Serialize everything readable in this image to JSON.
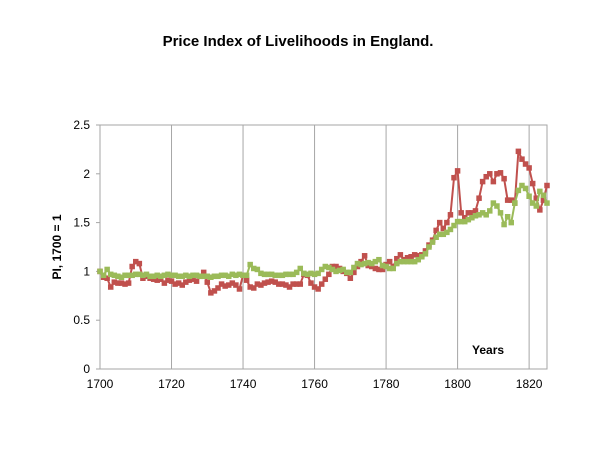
{
  "chart_data": {
    "type": "line",
    "title": "Price Index of Livelihoods in England.",
    "xlabel": "Years",
    "ylabel": "PI, 1700 = 1",
    "xlim": [
      1700,
      1825
    ],
    "ylim": [
      0,
      2.5
    ],
    "x_ticks": [
      "1700",
      "1720",
      "1740",
      "1760",
      "1780",
      "1800",
      "1820"
    ],
    "y_ticks": [
      "0",
      "0.5",
      "1",
      "1.5",
      "2",
      "2.5"
    ],
    "grid": "vertical",
    "legend": "none",
    "series": [
      {
        "color": "#c0504d",
        "marker": "square",
        "x": [
          1700,
          1701,
          1702,
          1703,
          1704,
          1705,
          1706,
          1707,
          1708,
          1709,
          1710,
          1711,
          1712,
          1713,
          1714,
          1715,
          1716,
          1717,
          1718,
          1719,
          1720,
          1721,
          1722,
          1723,
          1724,
          1725,
          1726,
          1727,
          1728,
          1729,
          1730,
          1731,
          1732,
          1733,
          1734,
          1735,
          1736,
          1737,
          1738,
          1739,
          1740,
          1741,
          1742,
          1743,
          1744,
          1745,
          1746,
          1747,
          1748,
          1749,
          1750,
          1751,
          1752,
          1753,
          1754,
          1755,
          1756,
          1757,
          1758,
          1759,
          1760,
          1761,
          1762,
          1763,
          1764,
          1765,
          1766,
          1767,
          1768,
          1769,
          1770,
          1771,
          1772,
          1773,
          1774,
          1775,
          1776,
          1777,
          1778,
          1779,
          1780,
          1781,
          1782,
          1783,
          1784,
          1785,
          1786,
          1787,
          1788,
          1789,
          1790,
          1791,
          1792,
          1793,
          1794,
          1795,
          1796,
          1797,
          1798,
          1799,
          1800,
          1801,
          1802,
          1803,
          1804,
          1805,
          1806,
          1807,
          1808,
          1809,
          1810,
          1811,
          1812,
          1813,
          1814,
          1815,
          1816,
          1817,
          1818,
          1819,
          1820,
          1821,
          1822,
          1823,
          1824,
          1825
        ],
        "values": [
          1.0,
          0.94,
          0.93,
          0.84,
          0.89,
          0.88,
          0.88,
          0.87,
          0.88,
          1.05,
          1.1,
          1.08,
          0.93,
          0.95,
          0.93,
          0.92,
          0.91,
          0.92,
          0.88,
          0.91,
          0.9,
          0.87,
          0.88,
          0.86,
          0.89,
          0.91,
          0.92,
          0.9,
          0.95,
          0.99,
          0.89,
          0.78,
          0.8,
          0.83,
          0.87,
          0.85,
          0.86,
          0.88,
          0.86,
          0.82,
          0.96,
          0.91,
          0.84,
          0.83,
          0.87,
          0.86,
          0.88,
          0.89,
          0.9,
          0.89,
          0.87,
          0.87,
          0.86,
          0.84,
          0.87,
          0.87,
          0.87,
          0.97,
          0.96,
          0.88,
          0.84,
          0.82,
          0.87,
          0.92,
          0.97,
          1.05,
          1.05,
          1.03,
          1.0,
          0.98,
          0.93,
          0.99,
          1.05,
          1.1,
          1.16,
          1.06,
          1.05,
          1.03,
          1.02,
          1.02,
          1.07,
          1.1,
          1.05,
          1.13,
          1.17,
          1.12,
          1.14,
          1.15,
          1.17,
          1.16,
          1.17,
          1.21,
          1.27,
          1.32,
          1.42,
          1.5,
          1.44,
          1.5,
          1.58,
          1.96,
          2.03,
          1.6,
          1.55,
          1.6,
          1.6,
          1.62,
          1.75,
          1.92,
          1.97,
          2.0,
          1.92,
          2.0,
          2.01,
          1.95,
          1.73,
          1.73,
          1.7,
          2.23,
          2.15,
          2.1,
          2.06,
          1.9,
          1.75,
          1.63,
          1.73,
          1.88
        ]
      },
      {
        "color": "#9bbb59",
        "marker": "square",
        "x": [
          1700,
          1701,
          1702,
          1703,
          1704,
          1705,
          1706,
          1707,
          1708,
          1709,
          1710,
          1711,
          1712,
          1713,
          1714,
          1715,
          1716,
          1717,
          1718,
          1719,
          1720,
          1721,
          1722,
          1723,
          1724,
          1725,
          1726,
          1727,
          1728,
          1729,
          1730,
          1731,
          1732,
          1733,
          1734,
          1735,
          1736,
          1737,
          1738,
          1739,
          1740,
          1741,
          1742,
          1743,
          1744,
          1745,
          1746,
          1747,
          1748,
          1749,
          1750,
          1751,
          1752,
          1753,
          1754,
          1755,
          1756,
          1757,
          1758,
          1759,
          1760,
          1761,
          1762,
          1763,
          1764,
          1765,
          1766,
          1767,
          1768,
          1769,
          1770,
          1771,
          1772,
          1773,
          1774,
          1775,
          1776,
          1777,
          1778,
          1779,
          1780,
          1781,
          1782,
          1783,
          1784,
          1785,
          1786,
          1787,
          1788,
          1789,
          1790,
          1791,
          1792,
          1793,
          1794,
          1795,
          1796,
          1797,
          1798,
          1799,
          1800,
          1801,
          1802,
          1803,
          1804,
          1805,
          1806,
          1807,
          1808,
          1809,
          1810,
          1811,
          1812,
          1813,
          1814,
          1815,
          1816,
          1817,
          1818,
          1819,
          1820,
          1821,
          1822,
          1823,
          1824,
          1825
        ],
        "values": [
          1.0,
          0.96,
          1.02,
          0.97,
          0.96,
          0.95,
          0.94,
          0.96,
          0.96,
          0.96,
          0.97,
          0.97,
          0.96,
          0.97,
          0.95,
          0.95,
          0.96,
          0.95,
          0.96,
          0.97,
          0.96,
          0.96,
          0.95,
          0.95,
          0.96,
          0.95,
          0.96,
          0.96,
          0.95,
          0.95,
          0.95,
          0.94,
          0.95,
          0.95,
          0.96,
          0.96,
          0.95,
          0.97,
          0.96,
          0.97,
          0.96,
          0.96,
          1.07,
          1.03,
          1.02,
          0.98,
          0.97,
          0.97,
          0.97,
          0.96,
          0.96,
          0.96,
          0.97,
          0.97,
          0.97,
          0.99,
          1.03,
          0.98,
          0.97,
          0.98,
          0.97,
          0.98,
          1.02,
          1.05,
          1.04,
          1.02,
          1.0,
          1.01,
          1.02,
          0.99,
          0.99,
          1.04,
          1.08,
          1.07,
          1.08,
          1.09,
          1.08,
          1.1,
          1.12,
          1.06,
          1.05,
          1.03,
          1.03,
          1.08,
          1.1,
          1.1,
          1.1,
          1.1,
          1.1,
          1.12,
          1.15,
          1.18,
          1.25,
          1.3,
          1.35,
          1.38,
          1.38,
          1.4,
          1.43,
          1.47,
          1.51,
          1.51,
          1.51,
          1.53,
          1.55,
          1.57,
          1.58,
          1.6,
          1.58,
          1.62,
          1.7,
          1.67,
          1.6,
          1.48,
          1.56,
          1.5,
          1.7,
          1.83,
          1.88,
          1.85,
          1.77,
          1.7,
          1.67,
          1.82,
          1.78,
          1.7
        ]
      }
    ]
  }
}
